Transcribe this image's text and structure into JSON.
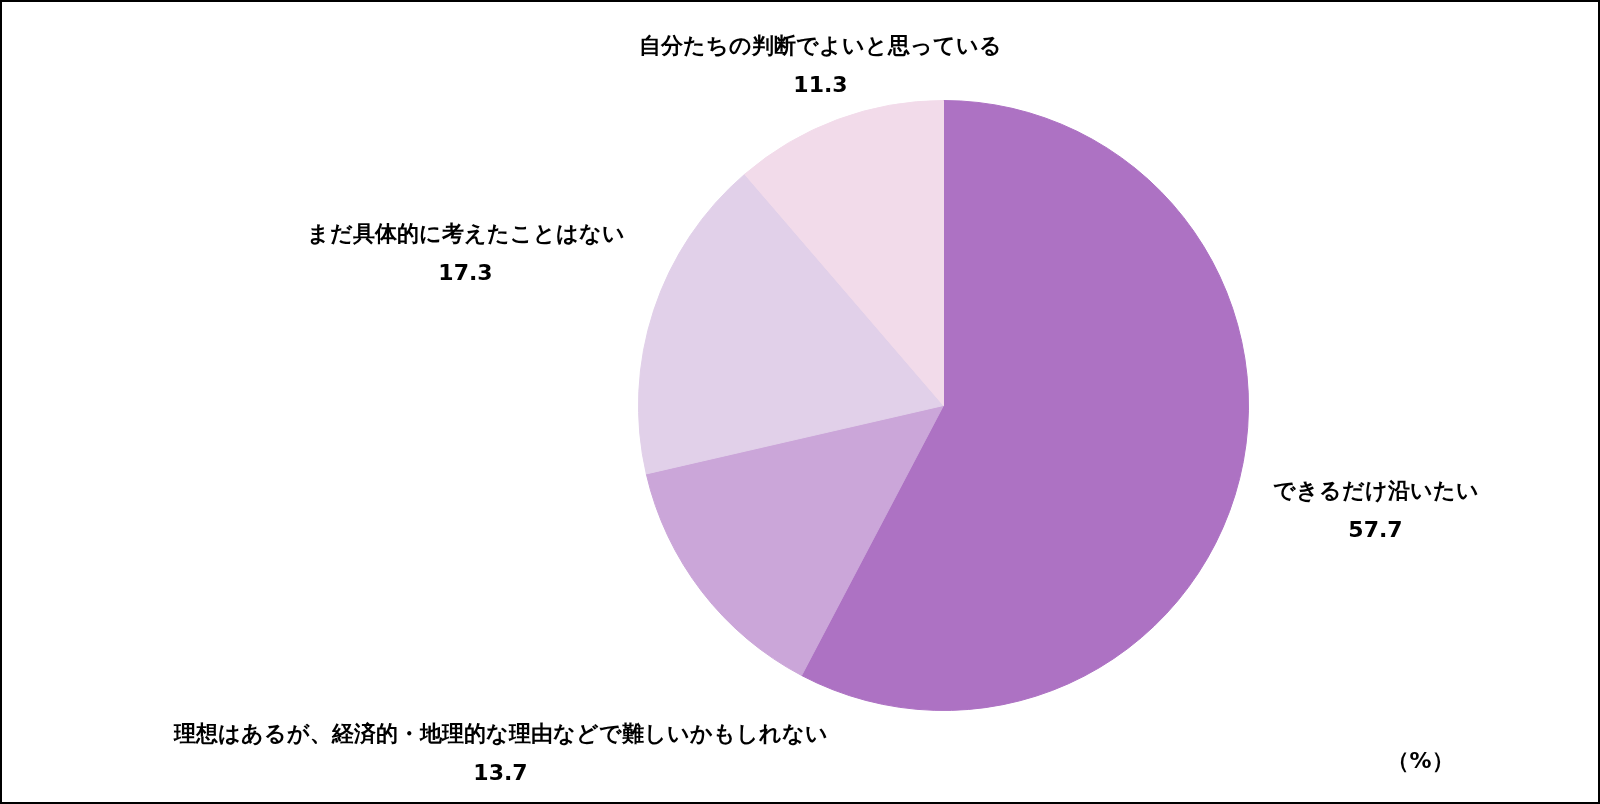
{
  "chart_data": {
    "type": "pie",
    "categories": [
      "できるだけ沿いたい",
      "理想はあるが、経済的・地理的な理由などで難しいかもしれない",
      "まだ具体的に考えたことはない",
      "自分たちの判断でよいと思っている"
    ],
    "values": [
      57.7,
      13.7,
      17.3,
      11.3
    ],
    "colors": [
      "#ad72c3",
      "#cba6d9",
      "#e1d0e9",
      "#f2dbea"
    ],
    "data_labels": true,
    "annotations": [
      "（%）"
    ]
  }
}
